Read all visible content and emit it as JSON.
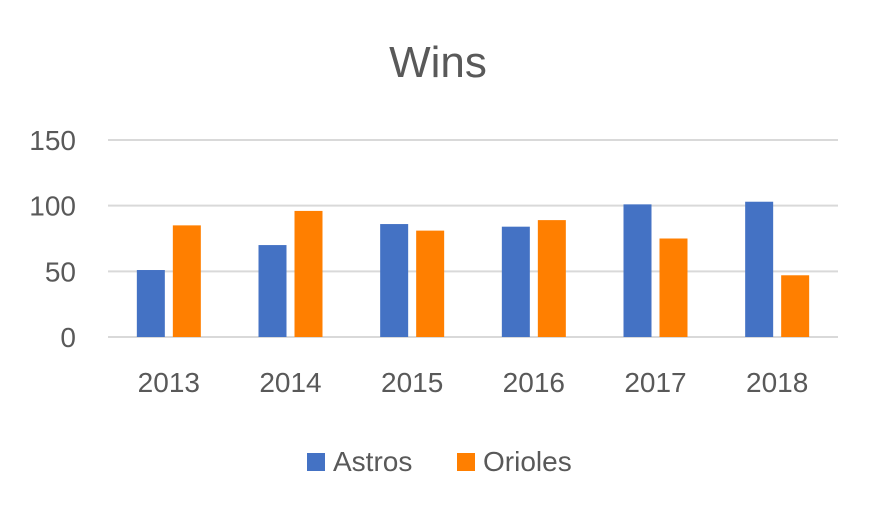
{
  "chart_data": {
    "type": "bar",
    "title": "Wins",
    "xlabel": "",
    "ylabel": "",
    "ylim": [
      0,
      150
    ],
    "yticks": [
      0,
      50,
      100,
      150
    ],
    "grid": true,
    "legend_placement": "bottom",
    "categories": [
      "2013",
      "2014",
      "2015",
      "2016",
      "2017",
      "2018"
    ],
    "series": [
      {
        "name": "Astros",
        "color": "#4472c4",
        "values": [
          51,
          70,
          86,
          84,
          101,
          103
        ]
      },
      {
        "name": "Orioles",
        "color": "#ff7f00",
        "values": [
          85,
          96,
          81,
          89,
          75,
          47
        ]
      }
    ]
  }
}
